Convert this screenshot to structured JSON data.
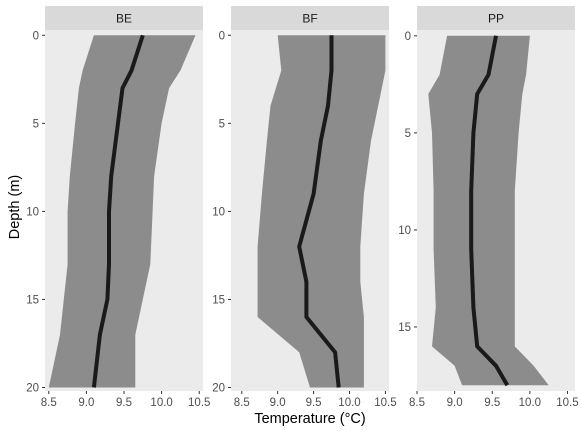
{
  "chart_data": {
    "type": "area",
    "xlabel": "Temperature (°C)",
    "ylabel": "Depth (m)",
    "reversed_y": true,
    "grid": false,
    "colors": {
      "panel_bg": "#ebebeb",
      "strip_bg": "#d9d9d9",
      "band": "#8c8c8c",
      "line": "#1a1a1a"
    },
    "panels": [
      {
        "label": "BE",
        "xlim": [
          8.45,
          10.55
        ],
        "ylim": [
          20.2,
          -0.3
        ],
        "xticks": [
          "8.5",
          "9.0",
          "9.5",
          "10.0",
          "10.5"
        ],
        "xtick_values": [
          8.5,
          9.0,
          9.5,
          10.0,
          10.5
        ],
        "yticks": [
          "0",
          "5",
          "10",
          "15",
          "20"
        ],
        "ytick_values": [
          0,
          5,
          10,
          15,
          20
        ],
        "line": {
          "x": [
            9.75,
            9.6,
            9.48,
            9.42,
            9.33,
            9.3,
            9.3,
            9.28,
            9.18,
            9.1
          ],
          "y": [
            0,
            2,
            3,
            5,
            8,
            10,
            13,
            15,
            17,
            20
          ]
        },
        "band": {
          "upper": [
            10.45,
            10.25,
            10.1,
            10.0,
            9.9,
            9.88,
            9.85,
            9.75,
            9.65,
            9.65
          ],
          "lower": [
            9.1,
            8.95,
            8.9,
            8.85,
            8.78,
            8.75,
            8.75,
            8.7,
            8.65,
            8.5
          ],
          "y": [
            0,
            2,
            3,
            5,
            8,
            10,
            13,
            15,
            17,
            20
          ]
        }
      },
      {
        "label": "BF",
        "xlim": [
          8.35,
          10.55
        ],
        "ylim": [
          20.2,
          -0.3
        ],
        "xticks": [
          "8.5",
          "9.0",
          "9.5",
          "10.0",
          "10.5"
        ],
        "xtick_values": [
          8.5,
          9.0,
          9.5,
          10.0,
          10.5
        ],
        "yticks": [
          "0",
          "5",
          "10",
          "15",
          "20"
        ],
        "ytick_values": [
          0,
          5,
          10,
          15,
          20
        ],
        "line": {
          "x": [
            9.75,
            9.75,
            9.7,
            9.6,
            9.5,
            9.3,
            9.4,
            9.4,
            9.8,
            9.85
          ],
          "y": [
            0,
            2,
            4,
            6,
            9,
            12,
            14,
            16,
            18,
            20
          ]
        },
        "band": {
          "upper": [
            10.5,
            10.5,
            10.4,
            10.3,
            10.2,
            10.15,
            10.15,
            10.2,
            10.2,
            10.2
          ],
          "lower": [
            9.0,
            9.05,
            8.9,
            8.85,
            8.78,
            8.72,
            8.72,
            8.72,
            9.3,
            9.45
          ],
          "y": [
            0,
            2,
            4,
            6,
            9,
            12,
            14,
            16,
            18,
            20
          ]
        }
      },
      {
        "label": "PP",
        "xlim": [
          8.5,
          10.6
        ],
        "ylim": [
          18.3,
          -0.3
        ],
        "xticks": [
          "8.5",
          "9.0",
          "9.5",
          "10.0",
          "10.5"
        ],
        "xtick_values": [
          8.5,
          9.0,
          9.5,
          10.0,
          10.5
        ],
        "yticks": [
          "0",
          "5",
          "10",
          "15"
        ],
        "ytick_values": [
          0,
          5,
          10,
          15
        ],
        "line": {
          "x": [
            9.55,
            9.45,
            9.3,
            9.25,
            9.22,
            9.22,
            9.25,
            9.3,
            9.55,
            9.7
          ],
          "y": [
            0,
            2,
            3,
            5,
            8,
            11,
            14,
            16,
            17,
            18
          ]
        },
        "band": {
          "upper": [
            10.0,
            9.95,
            9.9,
            9.85,
            9.8,
            9.8,
            9.8,
            9.8,
            10.05,
            10.25
          ],
          "lower": [
            8.9,
            8.8,
            8.65,
            8.7,
            8.72,
            8.72,
            8.75,
            8.7,
            9.0,
            9.1
          ],
          "y": [
            0,
            2,
            3,
            5,
            8,
            11,
            14,
            16,
            17,
            18
          ]
        }
      }
    ]
  }
}
